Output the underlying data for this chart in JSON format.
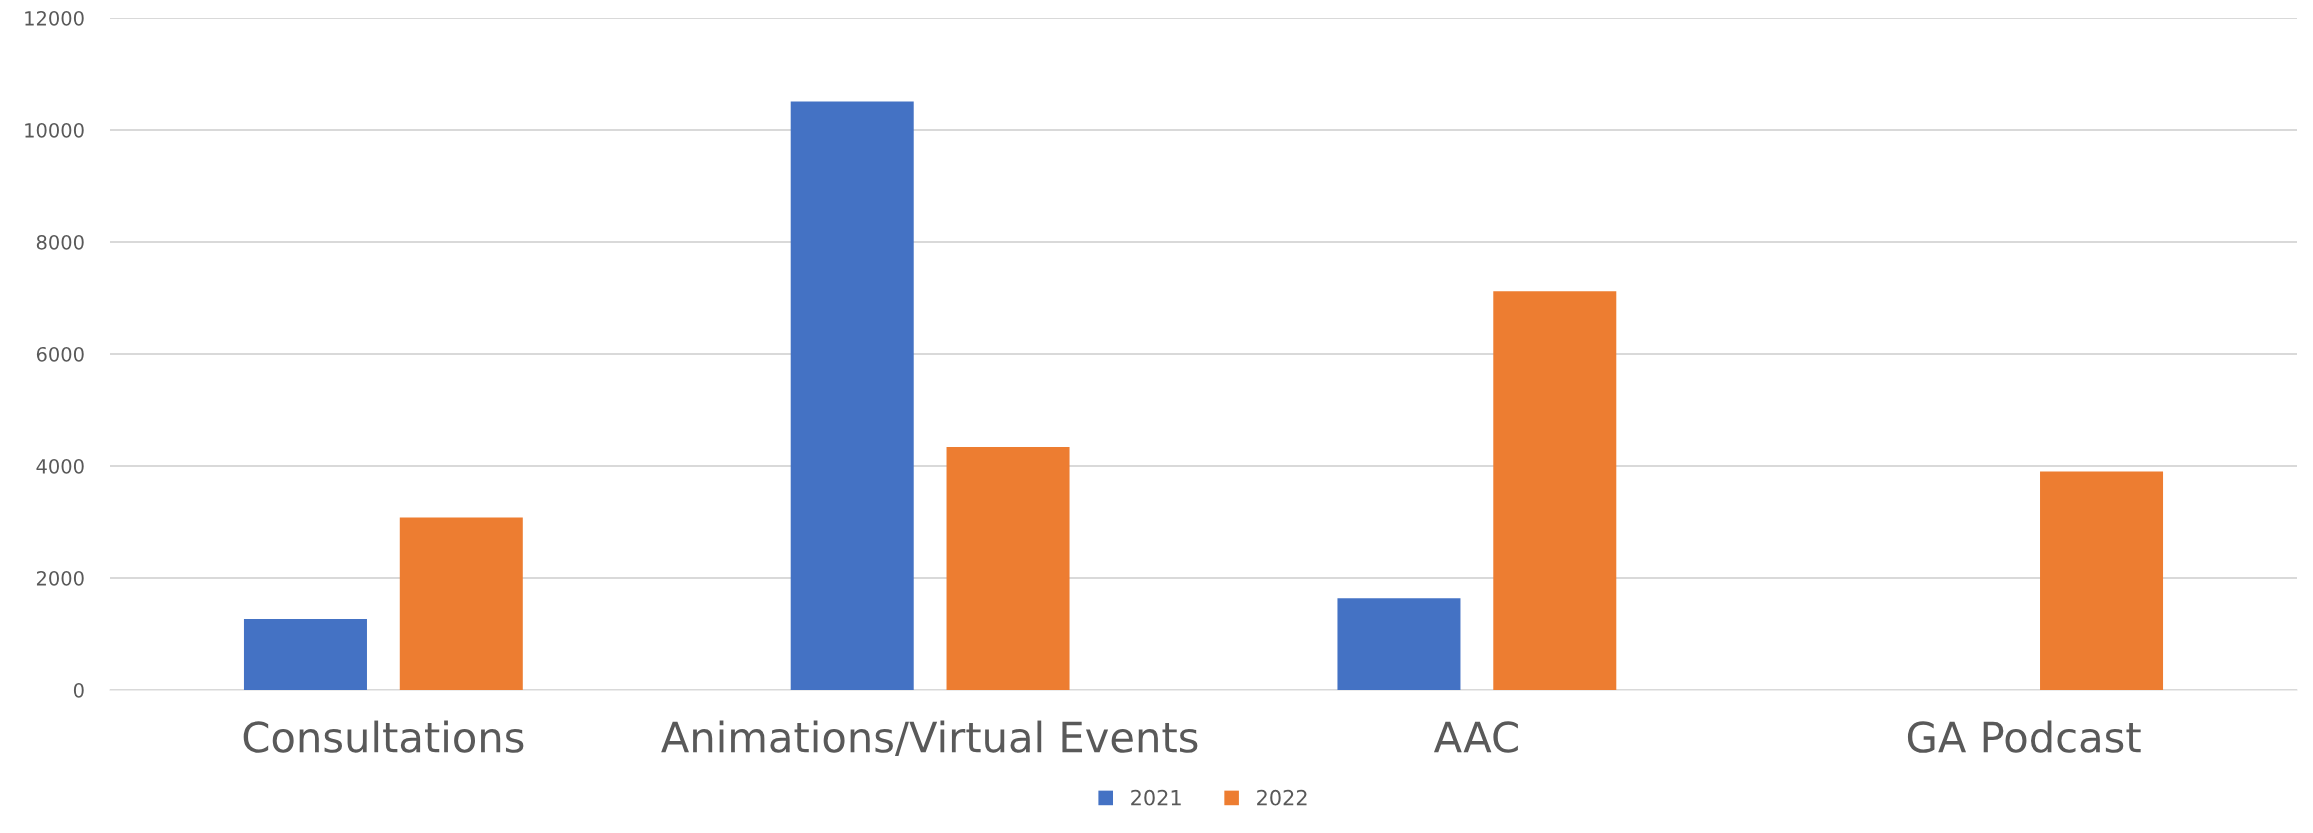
{
  "chart_data": {
    "type": "bar",
    "categories": [
      "Consultations",
      "Animations/Virtual Events",
      "AAC",
      "GA Podcast"
    ],
    "series": [
      {
        "name": "2021",
        "color": "#4472c4",
        "values": [
          1270,
          10510,
          1640,
          null
        ]
      },
      {
        "name": "2022",
        "color": "#ed7d31",
        "values": [
          3080,
          4340,
          7120,
          3900
        ]
      }
    ],
    "ylim": [
      0,
      12000
    ],
    "yticks": [
      0,
      2000,
      4000,
      6000,
      8000,
      10000,
      12000
    ],
    "grid": "y",
    "legend": "bottom"
  }
}
